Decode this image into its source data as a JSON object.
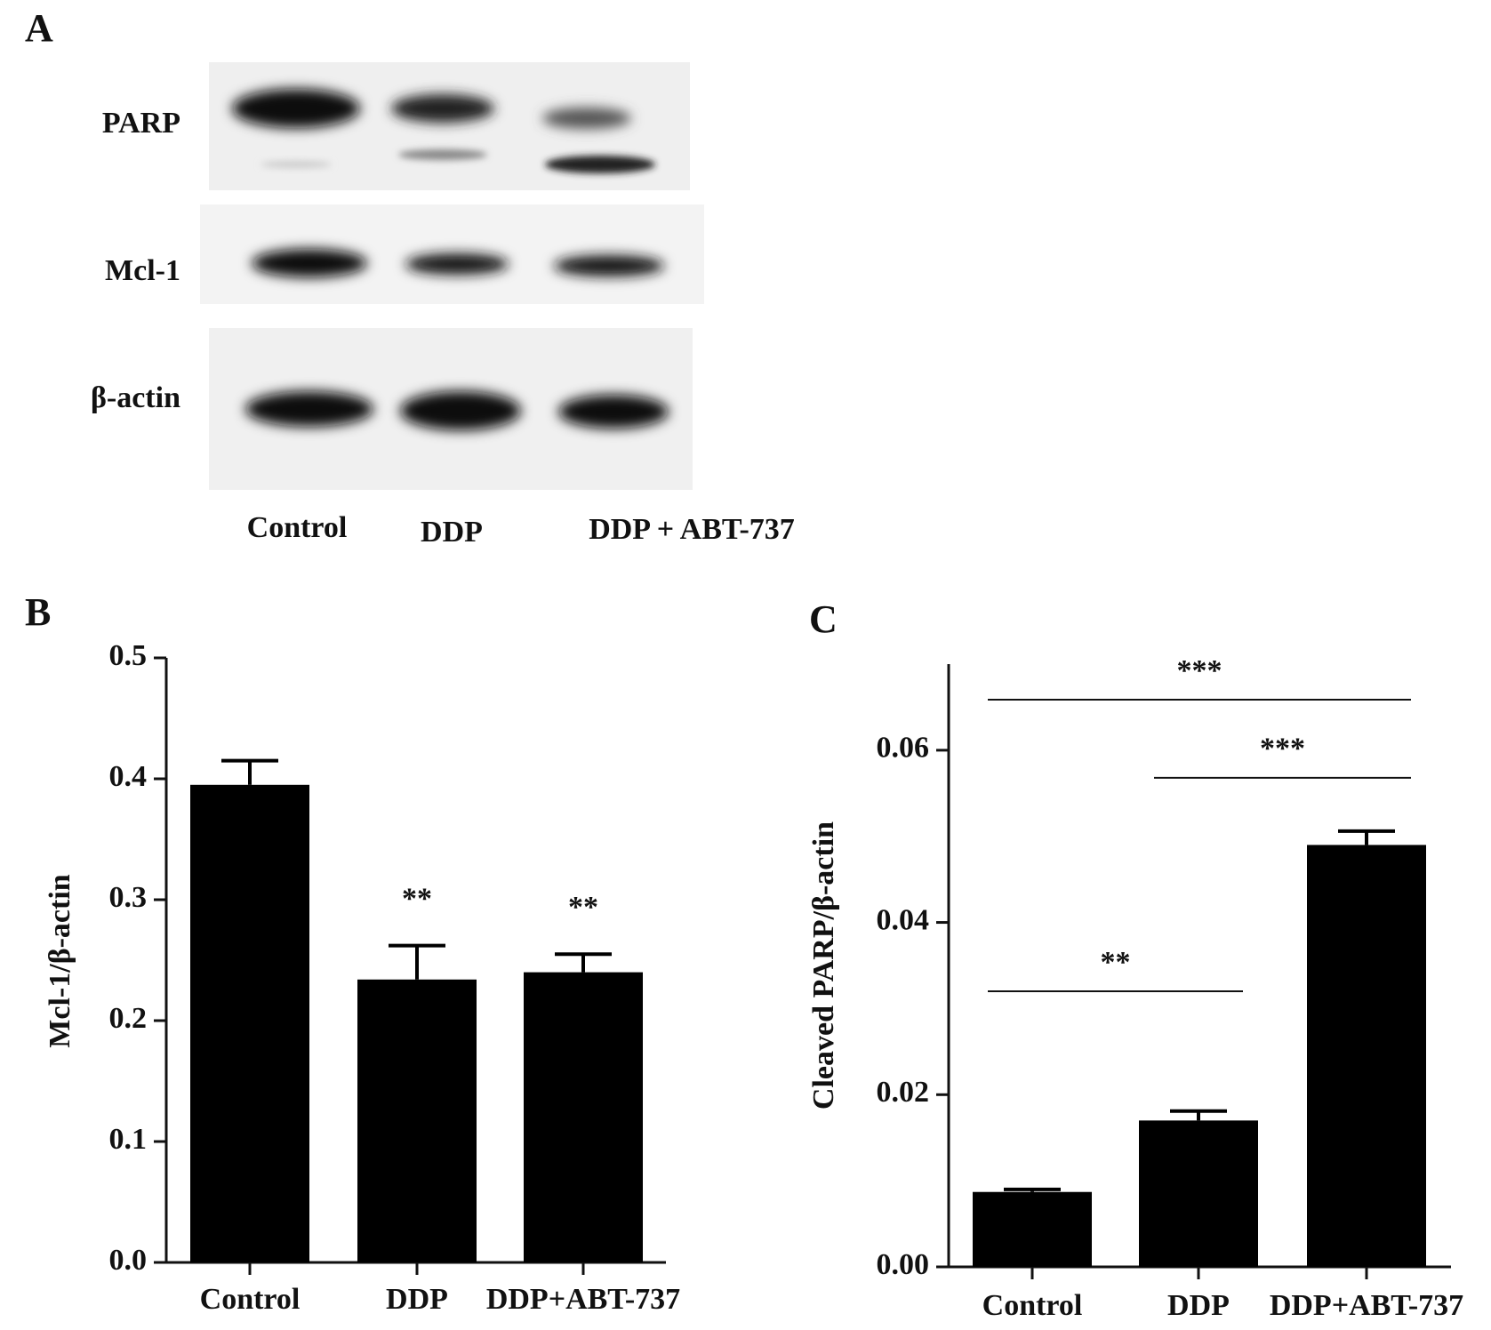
{
  "blot": {
    "panel_label": "A",
    "rows": [
      "PARP",
      "Mcl-1",
      "β-actin"
    ],
    "lanes": [
      "Control",
      "DDP",
      "DDP + ABT-737"
    ]
  },
  "chart_data": [
    {
      "type": "bar",
      "panel_label": "B",
      "ylabel": "Mcl-1/β-actin",
      "categories": [
        "Control",
        "DDP",
        "DDP+ABT-737"
      ],
      "values": [
        0.395,
        0.234,
        0.24
      ],
      "errors": [
        0.02,
        0.028,
        0.015
      ],
      "significance": [
        null,
        "**",
        "**"
      ],
      "color": "#000000",
      "ylim": [
        0,
        0.5
      ],
      "yticks": [
        {
          "value": 0,
          "label": "0.0"
        },
        0.1,
        0.2,
        0.3,
        0.4,
        0.5
      ]
    },
    {
      "type": "bar",
      "panel_label": "C",
      "ylabel": "Cleaved PARP/β-actin",
      "categories": [
        "Control",
        "DDP",
        "DDP+ABT-737"
      ],
      "values": [
        0.0087,
        0.017,
        0.049
      ],
      "errors": [
        0.0003,
        0.0011,
        0.0016
      ],
      "brackets": [
        {
          "groups": [
            0,
            2
          ],
          "label": "***"
        },
        {
          "groups": [
            1,
            2
          ],
          "label": "***"
        },
        {
          "groups": [
            0,
            1
          ],
          "label": "**"
        }
      ],
      "color": "#000000",
      "ylim": [
        0,
        0.07
      ],
      "yticks": [
        {
          "value": 0,
          "label": "0.00"
        },
        {
          "value": 0.02,
          "label": "0.02"
        },
        {
          "value": 0.04,
          "label": "0.04"
        },
        {
          "value": 0.06,
          "label": "0.06"
        }
      ]
    }
  ]
}
